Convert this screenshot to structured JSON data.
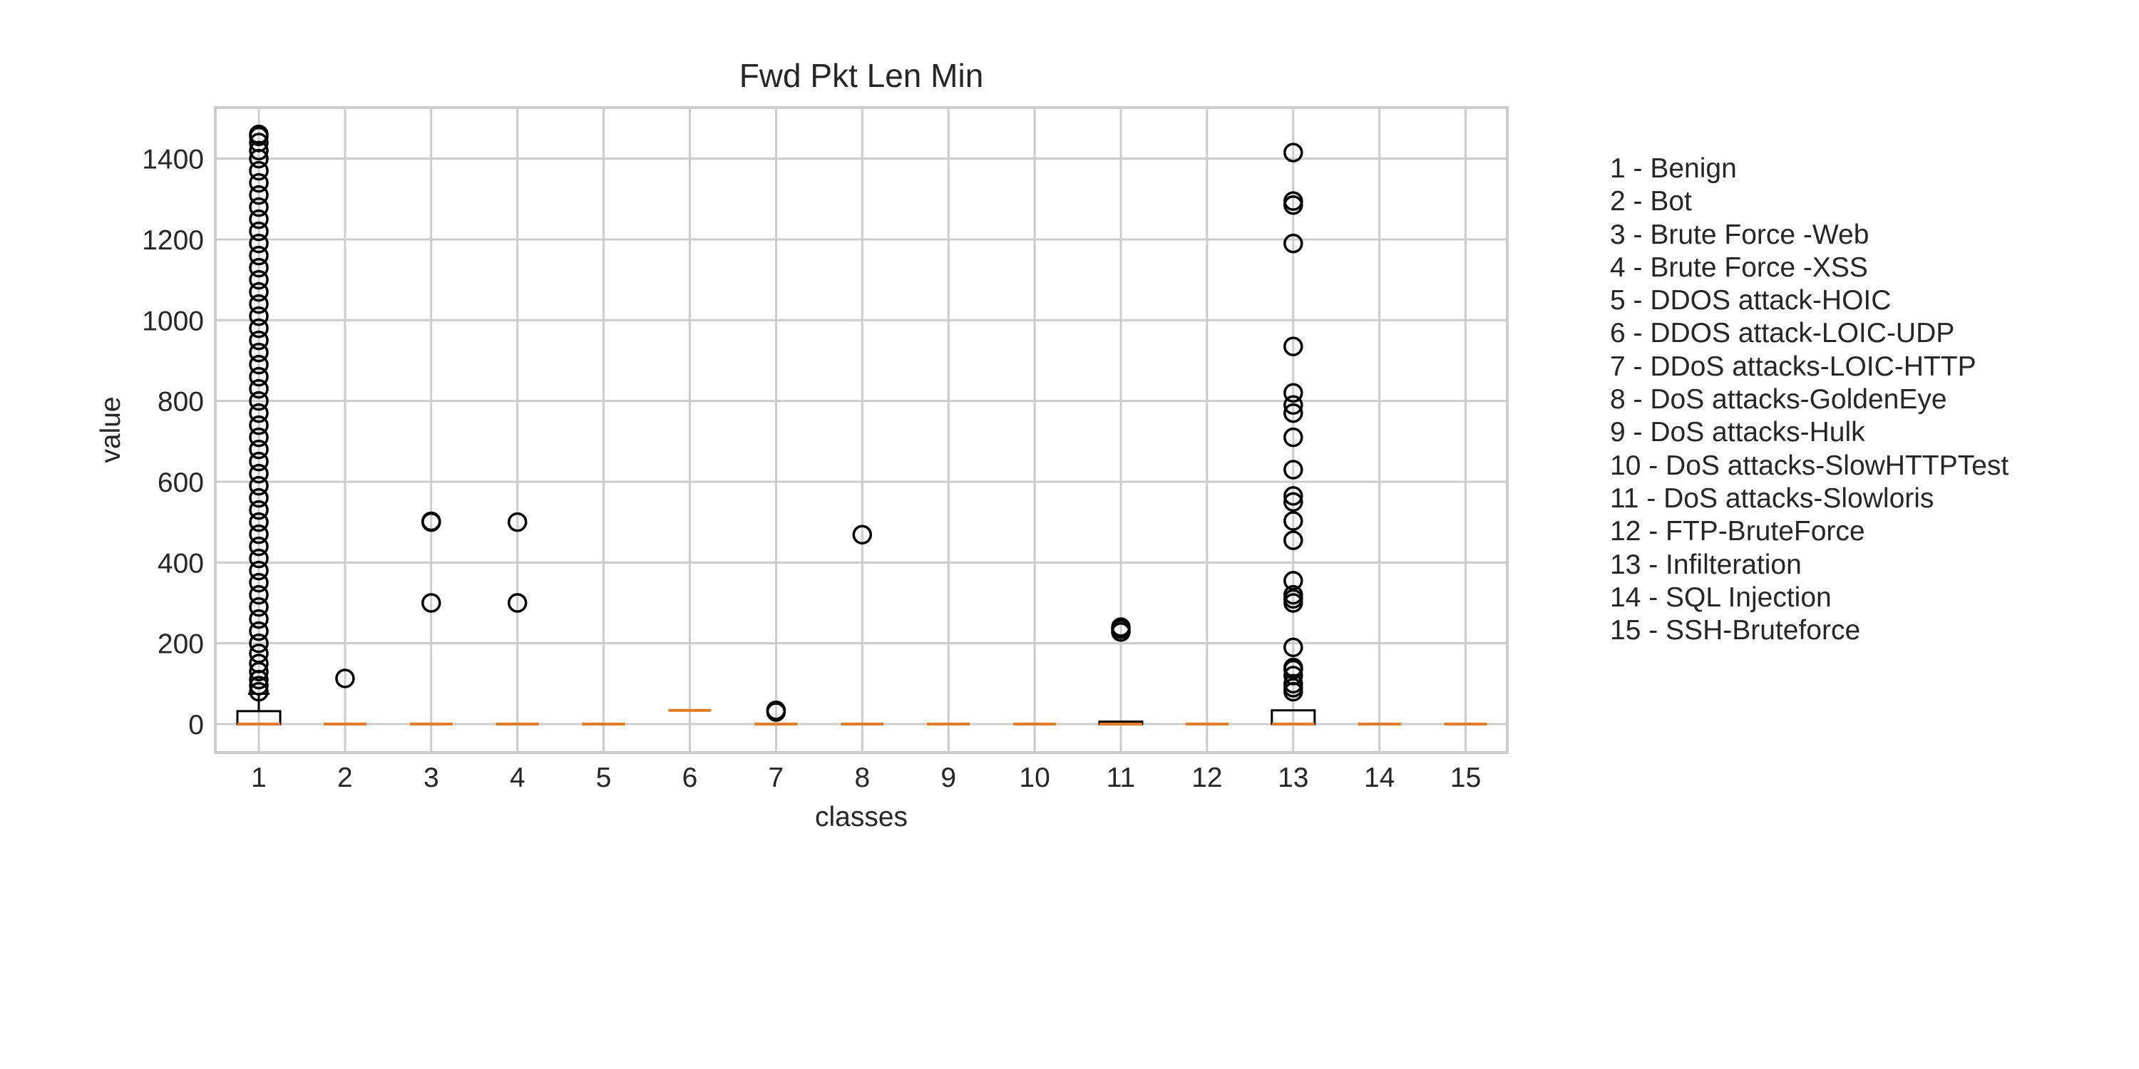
{
  "chart_data": {
    "type": "box",
    "title": "Fwd Pkt Len Min",
    "xlabel": "classes",
    "ylabel": "value",
    "ylim": [
      -70,
      1470
    ],
    "yticks": [
      0,
      200,
      400,
      600,
      800,
      1000,
      1200,
      1400
    ],
    "categories": [
      "1",
      "2",
      "3",
      "4",
      "5",
      "6",
      "7",
      "8",
      "9",
      "10",
      "11",
      "12",
      "13",
      "14",
      "15"
    ],
    "grid": true,
    "legend_position": "right",
    "box_color": "#000000",
    "median_color": "#e07b2a",
    "boxes": [
      {
        "class": "1",
        "q1": 0,
        "median": 0,
        "q3": 32,
        "whisker_low": 0,
        "whisker_high": 75,
        "outliers": [
          80,
          95,
          110,
          130,
          150,
          175,
          200,
          230,
          260,
          290,
          320,
          350,
          380,
          410,
          440,
          470,
          500,
          530,
          560,
          590,
          620,
          650,
          680,
          710,
          740,
          770,
          800,
          830,
          860,
          890,
          920,
          950,
          980,
          1010,
          1040,
          1070,
          1100,
          1130,
          1160,
          1190,
          1220,
          1250,
          1280,
          1310,
          1340,
          1370,
          1400,
          1420,
          1440,
          1455,
          1460
        ]
      },
      {
        "class": "2",
        "q1": 0,
        "median": 0,
        "q3": 0,
        "whisker_low": 0,
        "whisker_high": 0,
        "outliers": [
          113
        ]
      },
      {
        "class": "3",
        "q1": 0,
        "median": 0,
        "q3": 0,
        "whisker_low": 0,
        "whisker_high": 0,
        "outliers": [
          300,
          500,
          502
        ]
      },
      {
        "class": "4",
        "q1": 0,
        "median": 0,
        "q3": 0,
        "whisker_low": 0,
        "whisker_high": 0,
        "outliers": [
          300,
          500
        ]
      },
      {
        "class": "5",
        "q1": 0,
        "median": 0,
        "q3": 0,
        "whisker_low": 0,
        "whisker_high": 0,
        "outliers": []
      },
      {
        "class": "6",
        "q1": 34,
        "median": 34,
        "q3": 34,
        "whisker_low": 34,
        "whisker_high": 34,
        "outliers": []
      },
      {
        "class": "7",
        "q1": 0,
        "median": 0,
        "q3": 0,
        "whisker_low": 0,
        "whisker_high": 0,
        "outliers": [
          30,
          34
        ]
      },
      {
        "class": "8",
        "q1": 0,
        "median": 0,
        "q3": 0,
        "whisker_low": 0,
        "whisker_high": 0,
        "outliers": [
          469
        ]
      },
      {
        "class": "9",
        "q1": 0,
        "median": 0,
        "q3": 0,
        "whisker_low": 0,
        "whisker_high": 0,
        "outliers": []
      },
      {
        "class": "10",
        "q1": 0,
        "median": 0,
        "q3": 0,
        "whisker_low": 0,
        "whisker_high": 0,
        "outliers": []
      },
      {
        "class": "11",
        "q1": 0,
        "median": 0,
        "q3": 6,
        "whisker_low": 0,
        "whisker_high": 6,
        "outliers": [
          228,
          235,
          240
        ]
      },
      {
        "class": "12",
        "q1": 0,
        "median": 0,
        "q3": 0,
        "whisker_low": 0,
        "whisker_high": 0,
        "outliers": []
      },
      {
        "class": "13",
        "q1": 0,
        "median": 0,
        "q3": 34,
        "whisker_low": 0,
        "whisker_high": 34,
        "outliers": [
          80,
          90,
          100,
          120,
          135,
          140,
          190,
          300,
          310,
          320,
          355,
          455,
          503,
          550,
          565,
          630,
          710,
          770,
          790,
          820,
          935,
          1190,
          1285,
          1295,
          1415
        ]
      },
      {
        "class": "14",
        "q1": 0,
        "median": 0,
        "q3": 0,
        "whisker_low": 0,
        "whisker_high": 0,
        "outliers": []
      },
      {
        "class": "15",
        "q1": 0,
        "median": 0,
        "q3": 0,
        "whisker_low": 0,
        "whisker_high": 0,
        "outliers": []
      }
    ],
    "legend": [
      "1 - Benign",
      "2 - Bot",
      "3 - Brute Force -Web",
      "4 - Brute Force -XSS",
      "5 - DDOS attack-HOIC",
      "6 - DDOS attack-LOIC-UDP",
      "7 - DDoS attacks-LOIC-HTTP",
      "8 - DoS attacks-GoldenEye",
      "9 - DoS attacks-Hulk",
      "10 - DoS attacks-SlowHTTPTest",
      "11 - DoS attacks-Slowloris",
      "12 - FTP-BruteForce",
      "13 - Infilteration",
      "14 - SQL Injection",
      "15 - SSH-Bruteforce"
    ]
  }
}
